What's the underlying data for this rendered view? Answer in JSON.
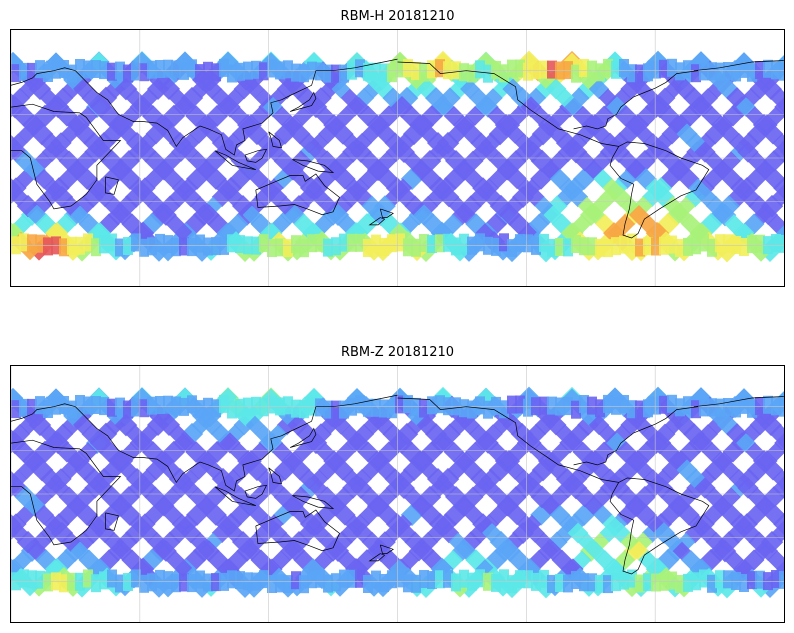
{
  "panels": [
    {
      "title": "RBM-H 20181210",
      "colormap": [
        "#6a64f2",
        "#5aa5f6",
        "#5ce8e8",
        "#a8f27a",
        "#f2ee5a",
        "#f7a644",
        "#e5565a"
      ],
      "grid": true,
      "hot_regions": [
        {
          "lon": 15,
          "lat": -60,
          "r": 25,
          "level": 0.85
        },
        {
          "lon": 175,
          "lat": -58,
          "r": 30,
          "level": 0.55
        },
        {
          "lon": 290,
          "lat": -48,
          "r": 35,
          "level": 0.95
        },
        {
          "lon": 275,
          "lat": -22,
          "r": 16,
          "level": 0.6
        },
        {
          "lon": 195,
          "lat": 60,
          "r": 30,
          "level": 0.55
        },
        {
          "lon": 250,
          "lat": 60,
          "r": 25,
          "level": 0.75
        },
        {
          "lon": 130,
          "lat": -58,
          "r": 25,
          "level": 0.5
        },
        {
          "lon": 330,
          "lat": -58,
          "r": 25,
          "level": 0.6
        }
      ]
    },
    {
      "title": "RBM-Z 20181210",
      "colormap": [
        "#6a64f2",
        "#5aa5f6",
        "#5ce8e8",
        "#a8f27a",
        "#f2ee5a",
        "#f7a644",
        "#e5565a"
      ],
      "grid": true,
      "hot_regions": [
        {
          "lon": 20,
          "lat": -60,
          "r": 25,
          "level": 0.4
        },
        {
          "lon": 285,
          "lat": -38,
          "r": 20,
          "level": 0.75
        },
        {
          "lon": 270,
          "lat": -25,
          "r": 18,
          "level": 0.45
        },
        {
          "lon": 300,
          "lat": -58,
          "r": 25,
          "level": 0.4
        },
        {
          "lon": 220,
          "lat": -55,
          "r": 30,
          "level": 0.3
        },
        {
          "lon": 110,
          "lat": 58,
          "r": 25,
          "level": 0.3
        }
      ]
    }
  ]
}
